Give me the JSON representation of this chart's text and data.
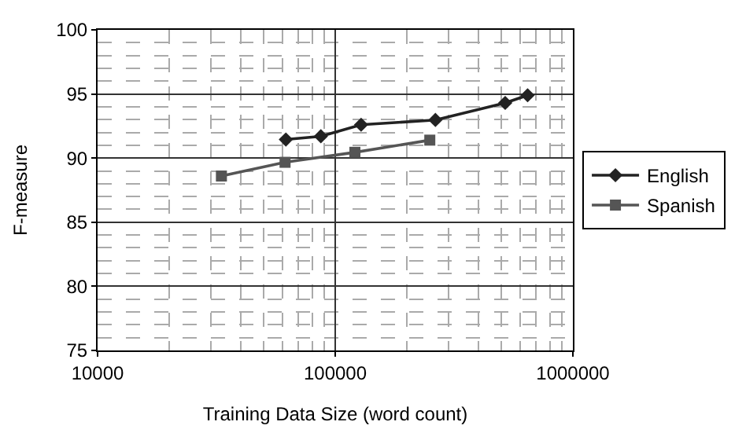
{
  "chart_data": {
    "type": "line",
    "xlabel": "Training Data Size (word count)",
    "ylabel": "F-measure",
    "log": "x",
    "xlim": [
      10000,
      1000000
    ],
    "xticks": [
      10000,
      100000,
      1000000
    ],
    "ylim": [
      75,
      100
    ],
    "yticks": [
      75,
      80,
      85,
      90,
      95,
      100
    ],
    "grid": true,
    "legend": "right",
    "line_style": "solid",
    "series": [
      {
        "name": "English",
        "color": "#222222",
        "marker": "diamond",
        "x": [
          62000,
          87000,
          128500,
          264000,
          519000,
          645000
        ],
        "values": [
          91.45,
          91.7,
          92.6,
          92.97,
          94.3,
          94.9
        ]
      },
      {
        "name": "Spanish",
        "color": "#555555",
        "marker": "square",
        "x": [
          33200,
          61500,
          121000,
          250000
        ],
        "values": [
          88.6,
          89.67,
          90.45,
          91.4
        ]
      }
    ]
  }
}
